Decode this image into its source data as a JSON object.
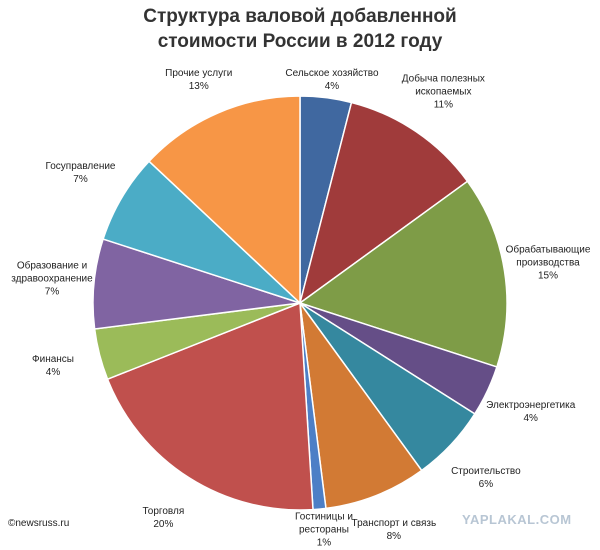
{
  "chart_data": {
    "type": "pie",
    "title": "Структура валовой добавленной стоимости России в 2012 году",
    "categories": [
      "Сельское хозяйство",
      "Добыча полезных ископаемых",
      "Обрабатывающие производства",
      "Электроэнергетика",
      "Строительство",
      "Транспорт и связь",
      "Гостиницы и рестораны",
      "Торговля",
      "Финансы",
      "Образование и здравоохранение",
      "Госуправление",
      "Прочие услуги"
    ],
    "values": [
      4,
      11,
      15,
      4,
      6,
      8,
      1,
      20,
      4,
      7,
      7,
      13
    ],
    "value_labels": [
      "4%",
      "11%",
      "15%",
      "4%",
      "6%",
      "8%",
      "1%",
      "20%",
      "4%",
      "7%",
      "7%",
      "13%"
    ],
    "colors": [
      "#4068a0",
      "#a03b3b",
      "#7e9c47",
      "#654e87",
      "#35889f",
      "#d27a34",
      "#4d7fc6",
      "#c0504d",
      "#9bbb59",
      "#8064a2",
      "#4bacc6",
      "#f79646"
    ],
    "credit": "©newsruss.ru",
    "watermark": "YAPLAKAL.COM"
  }
}
